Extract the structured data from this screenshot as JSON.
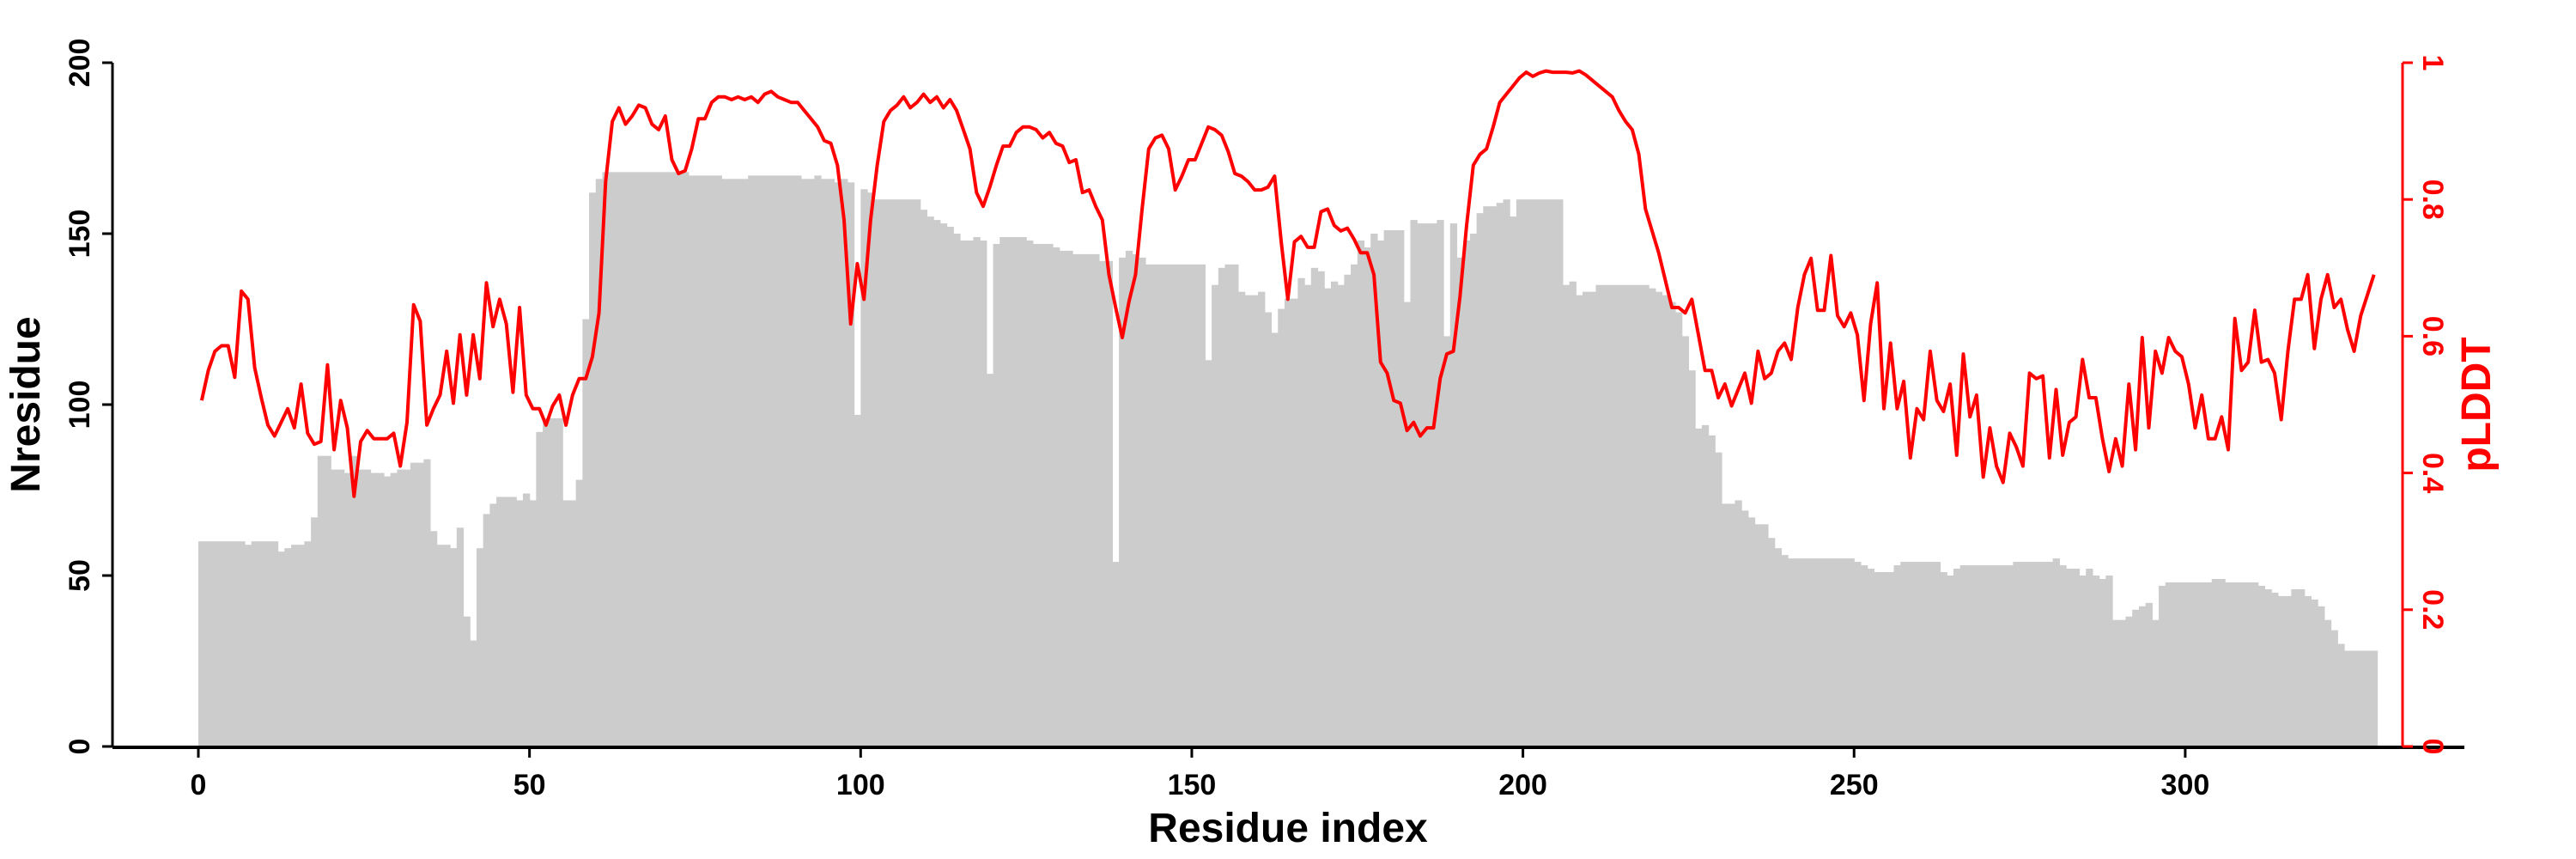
{
  "chart_data": {
    "type": "bar+line",
    "xlabel": "Residue index",
    "ylabel": "Nresidue",
    "y2label": "pLDDT",
    "xlim": [
      -13,
      356
    ],
    "ylim": [
      0,
      200
    ],
    "y2lim": [
      0,
      1
    ],
    "xticks": [
      0,
      50,
      100,
      150,
      200,
      250,
      300
    ],
    "yticks": [
      0,
      50,
      100,
      150,
      200
    ],
    "y2ticks": [
      0,
      0.2,
      0.4,
      0.6,
      0.8,
      1
    ],
    "grid": false,
    "colors": {
      "bars": "#cccccc",
      "line": "#ff0000",
      "axis": "#000000"
    },
    "series": [
      {
        "name": "Nresidue",
        "type": "bar",
        "axis": "left",
        "values": [
          60,
          60,
          60,
          60,
          60,
          60,
          60,
          59,
          60,
          60,
          60,
          60,
          57,
          58,
          59,
          59,
          60,
          67,
          85,
          85,
          81,
          81,
          80,
          85,
          81,
          81,
          80,
          80,
          79,
          80,
          81,
          81,
          83,
          83,
          84,
          63,
          59,
          59,
          58,
          64,
          38,
          31,
          58,
          68,
          71,
          73,
          73,
          73,
          72,
          74,
          72,
          92,
          96,
          96,
          96,
          72,
          72,
          78,
          125,
          162,
          166,
          168,
          168,
          168,
          168,
          168,
          168,
          168,
          168,
          168,
          168,
          168,
          168,
          168,
          167,
          167,
          167,
          167,
          167,
          166,
          166,
          166,
          166,
          167,
          167,
          167,
          167,
          167,
          167,
          167,
          167,
          166,
          166,
          167,
          166,
          166,
          165,
          166,
          165,
          97,
          163,
          162,
          160,
          160,
          160,
          160,
          160,
          160,
          160,
          157,
          155,
          154,
          153,
          152,
          150,
          148,
          148,
          149,
          148,
          109,
          147,
          149,
          149,
          149,
          149,
          148,
          147,
          147,
          147,
          146,
          145,
          145,
          144,
          144,
          144,
          144,
          142,
          142,
          54,
          143,
          145,
          144,
          143,
          141,
          141,
          141,
          141,
          141,
          141,
          141,
          141,
          141,
          113,
          135,
          140,
          141,
          141,
          133,
          132,
          132,
          133,
          127,
          121,
          128,
          131,
          131,
          137,
          135,
          140,
          139,
          134,
          136,
          135,
          138,
          141,
          148,
          146,
          150,
          148,
          151,
          151,
          151,
          130,
          154,
          153,
          153,
          153,
          154,
          120,
          153,
          143,
          148,
          150,
          156,
          158,
          158,
          159,
          160,
          155,
          160,
          160,
          160,
          160,
          160,
          160,
          160,
          135,
          136,
          132,
          133,
          133,
          135,
          135,
          135,
          135,
          135,
          135,
          135,
          135,
          134,
          133,
          132,
          130,
          127,
          120,
          110,
          93,
          94,
          91,
          86,
          71,
          71,
          72,
          69,
          67,
          65,
          65,
          61,
          58,
          56,
          55,
          55,
          55,
          55,
          55,
          55,
          55,
          55,
          55,
          55,
          54,
          53,
          52,
          51,
          51,
          51,
          53,
          54,
          54,
          54,
          54,
          54,
          54,
          51,
          50,
          52,
          53,
          53,
          53,
          53,
          53,
          53,
          53,
          53,
          54,
          54,
          54,
          54,
          54,
          54,
          55,
          53,
          52,
          52,
          50,
          52,
          50,
          49,
          50,
          37,
          37,
          38,
          40,
          41,
          42,
          37,
          47,
          48,
          48,
          48,
          48,
          48,
          48,
          48,
          49,
          49,
          48,
          48,
          48,
          48,
          48,
          47,
          46,
          45,
          44,
          44,
          46,
          46,
          44,
          43,
          41,
          37,
          34,
          30,
          28,
          28,
          28,
          28,
          28
        ]
      },
      {
        "name": "pLDDT",
        "type": "line",
        "axis": "right",
        "values": [
          0.506,
          0.55,
          0.578,
          0.586,
          0.586,
          0.54,
          0.666,
          0.654,
          0.554,
          0.51,
          0.47,
          0.454,
          0.474,
          0.494,
          0.466,
          0.53,
          0.458,
          0.442,
          0.446,
          0.558,
          0.434,
          0.506,
          0.466,
          0.366,
          0.446,
          0.462,
          0.45,
          0.45,
          0.45,
          0.458,
          0.41,
          0.474,
          0.646,
          0.622,
          0.47,
          0.494,
          0.514,
          0.578,
          0.502,
          0.602,
          0.514,
          0.602,
          0.538,
          0.678,
          0.614,
          0.654,
          0.618,
          0.518,
          0.642,
          0.514,
          0.494,
          0.494,
          0.47,
          0.498,
          0.514,
          0.47,
          0.514,
          0.538,
          0.538,
          0.57,
          0.634,
          0.826,
          0.914,
          0.934,
          0.91,
          0.922,
          0.938,
          0.934,
          0.91,
          0.902,
          0.922,
          0.858,
          0.838,
          0.842,
          0.874,
          0.918,
          0.918,
          0.942,
          0.95,
          0.95,
          0.946,
          0.95,
          0.946,
          0.95,
          0.942,
          0.954,
          0.958,
          0.95,
          0.946,
          0.942,
          0.942,
          0.93,
          0.918,
          0.906,
          0.886,
          0.882,
          0.85,
          0.77,
          0.618,
          0.706,
          0.654,
          0.77,
          0.85,
          0.914,
          0.93,
          0.938,
          0.95,
          0.934,
          0.942,
          0.954,
          0.942,
          0.95,
          0.934,
          0.946,
          0.93,
          0.902,
          0.874,
          0.81,
          0.79,
          0.818,
          0.85,
          0.878,
          0.878,
          0.898,
          0.906,
          0.906,
          0.902,
          0.89,
          0.898,
          0.882,
          0.878,
          0.854,
          0.858,
          0.81,
          0.814,
          0.79,
          0.77,
          0.69,
          0.642,
          0.598,
          0.65,
          0.69,
          0.786,
          0.874,
          0.89,
          0.894,
          0.874,
          0.814,
          0.834,
          0.858,
          0.858,
          0.882,
          0.906,
          0.902,
          0.894,
          0.87,
          0.838,
          0.834,
          0.826,
          0.814,
          0.814,
          0.818,
          0.834,
          0.738,
          0.654,
          0.738,
          0.746,
          0.73,
          0.73,
          0.782,
          0.786,
          0.762,
          0.754,
          0.758,
          0.742,
          0.722,
          0.722,
          0.69,
          0.562,
          0.546,
          0.506,
          0.502,
          0.462,
          0.474,
          0.454,
          0.466,
          0.466,
          0.538,
          0.574,
          0.578,
          0.658,
          0.762,
          0.85,
          0.866,
          0.874,
          0.906,
          0.942,
          0.954,
          0.966,
          0.978,
          0.986,
          0.98,
          0.985,
          0.988,
          0.986,
          0.986,
          0.986,
          0.985,
          0.988,
          0.982,
          0.974,
          0.966,
          0.958,
          0.95,
          0.93,
          0.914,
          0.902,
          0.866,
          0.786,
          0.754,
          0.722,
          0.682,
          0.642,
          0.642,
          0.634,
          0.654,
          0.602,
          0.55,
          0.55,
          0.51,
          0.53,
          0.498,
          0.522,
          0.546,
          0.502,
          0.578,
          0.538,
          0.546,
          0.578,
          0.59,
          0.566,
          0.642,
          0.69,
          0.714,
          0.638,
          0.638,
          0.718,
          0.63,
          0.614,
          0.634,
          0.602,
          0.506,
          0.618,
          0.678,
          0.494,
          0.59,
          0.494,
          0.534,
          0.422,
          0.494,
          0.478,
          0.578,
          0.506,
          0.49,
          0.53,
          0.426,
          0.574,
          0.482,
          0.514,
          0.394,
          0.466,
          0.41,
          0.386,
          0.458,
          0.438,
          0.41,
          0.546,
          0.538,
          0.542,
          0.422,
          0.522,
          0.426,
          0.474,
          0.482,
          0.566,
          0.51,
          0.51,
          0.45,
          0.402,
          0.45,
          0.41,
          0.53,
          0.434,
          0.598,
          0.466,
          0.578,
          0.546,
          0.598,
          0.578,
          0.57,
          0.53,
          0.466,
          0.514,
          0.45,
          0.45,
          0.482,
          0.434,
          0.626,
          0.55,
          0.562,
          0.638,
          0.562,
          0.566,
          0.546,
          0.478,
          0.578,
          0.654,
          0.654,
          0.69,
          0.582,
          0.654,
          0.69,
          0.642,
          0.654,
          0.61,
          0.578,
          0.63,
          0.66,
          0.69
        ]
      }
    ]
  }
}
